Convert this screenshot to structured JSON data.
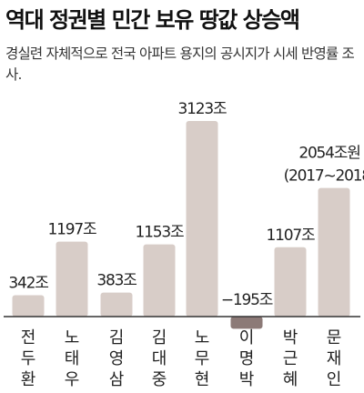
{
  "title": "역대 정권별 민간 보유 땅값 상승액",
  "subtitle": "경실련 자체적으로 전국 아파트 용지의 공시지가 시세 반영률 조사.",
  "chart_data": {
    "type": "bar",
    "title": "역대 정권별 민간 보유 땅값 상승액",
    "unit": "조",
    "categories": [
      "전두환",
      "노태우",
      "김영삼",
      "김대중",
      "노무현",
      "이명박",
      "박근혜",
      "문재인"
    ],
    "values": [
      342,
      1197,
      383,
      1153,
      3123,
      -195,
      1107,
      2054
    ],
    "labels": [
      "342조",
      "1197조",
      "383조",
      "1153조",
      "3123조",
      "−195조",
      "1107조",
      "2054조원"
    ],
    "extra_note": "(2017~2018)",
    "ylim": [
      -195,
      3123
    ],
    "grid": false,
    "legend": "none",
    "colors": {
      "positive": "#d8cdc8",
      "negative": "#8c7a77",
      "baseline": "#333333"
    }
  }
}
